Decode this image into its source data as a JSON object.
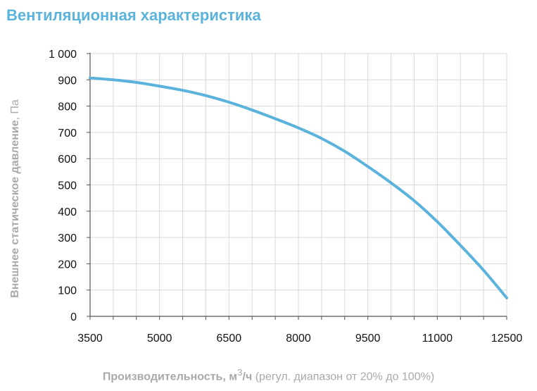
{
  "title": "Вентиляционная характеристика",
  "chart_data": {
    "type": "line",
    "xlabel": {
      "main": "Производительность",
      "unit_prefix": ", м",
      "unit_sup": "3",
      "unit_suffix": "/ч",
      "note": " (регул. диапазон от 20% до 100%)"
    },
    "ylabel": {
      "main": "Внешнее статическое давление",
      "unit": ", Па"
    },
    "xlim": [
      3500,
      12500
    ],
    "ylim": [
      0,
      1000
    ],
    "x_ticks": [
      3500,
      5000,
      6500,
      8000,
      9500,
      11000,
      12500
    ],
    "x_tick_labels": [
      "3500",
      "5000",
      "6500",
      "8000",
      "9500",
      "11000",
      "12500"
    ],
    "y_ticks": [
      0,
      100,
      200,
      300,
      400,
      500,
      600,
      700,
      800,
      900,
      1000
    ],
    "y_tick_labels": [
      "0",
      "100",
      "200",
      "300",
      "400",
      "500",
      "600",
      "700",
      "800",
      "900",
      "1 000"
    ],
    "x_minor_step": 500,
    "grid": true,
    "series": [
      {
        "color": "#5bb3dc",
        "x": [
          3500,
          4000,
          4500,
          5000,
          5500,
          6000,
          6500,
          7000,
          7500,
          8000,
          8500,
          9000,
          9500,
          10000,
          10500,
          11000,
          11500,
          12000,
          12500
        ],
        "y": [
          907,
          900,
          890,
          876,
          860,
          840,
          815,
          785,
          752,
          717,
          677,
          628,
          570,
          508,
          440,
          360,
          270,
          175,
          70
        ]
      }
    ]
  },
  "colors": {
    "accent": "#5bb3dc",
    "grid": "#d9d9d9",
    "axis": "#555555",
    "label": "#a9a9a9"
  }
}
